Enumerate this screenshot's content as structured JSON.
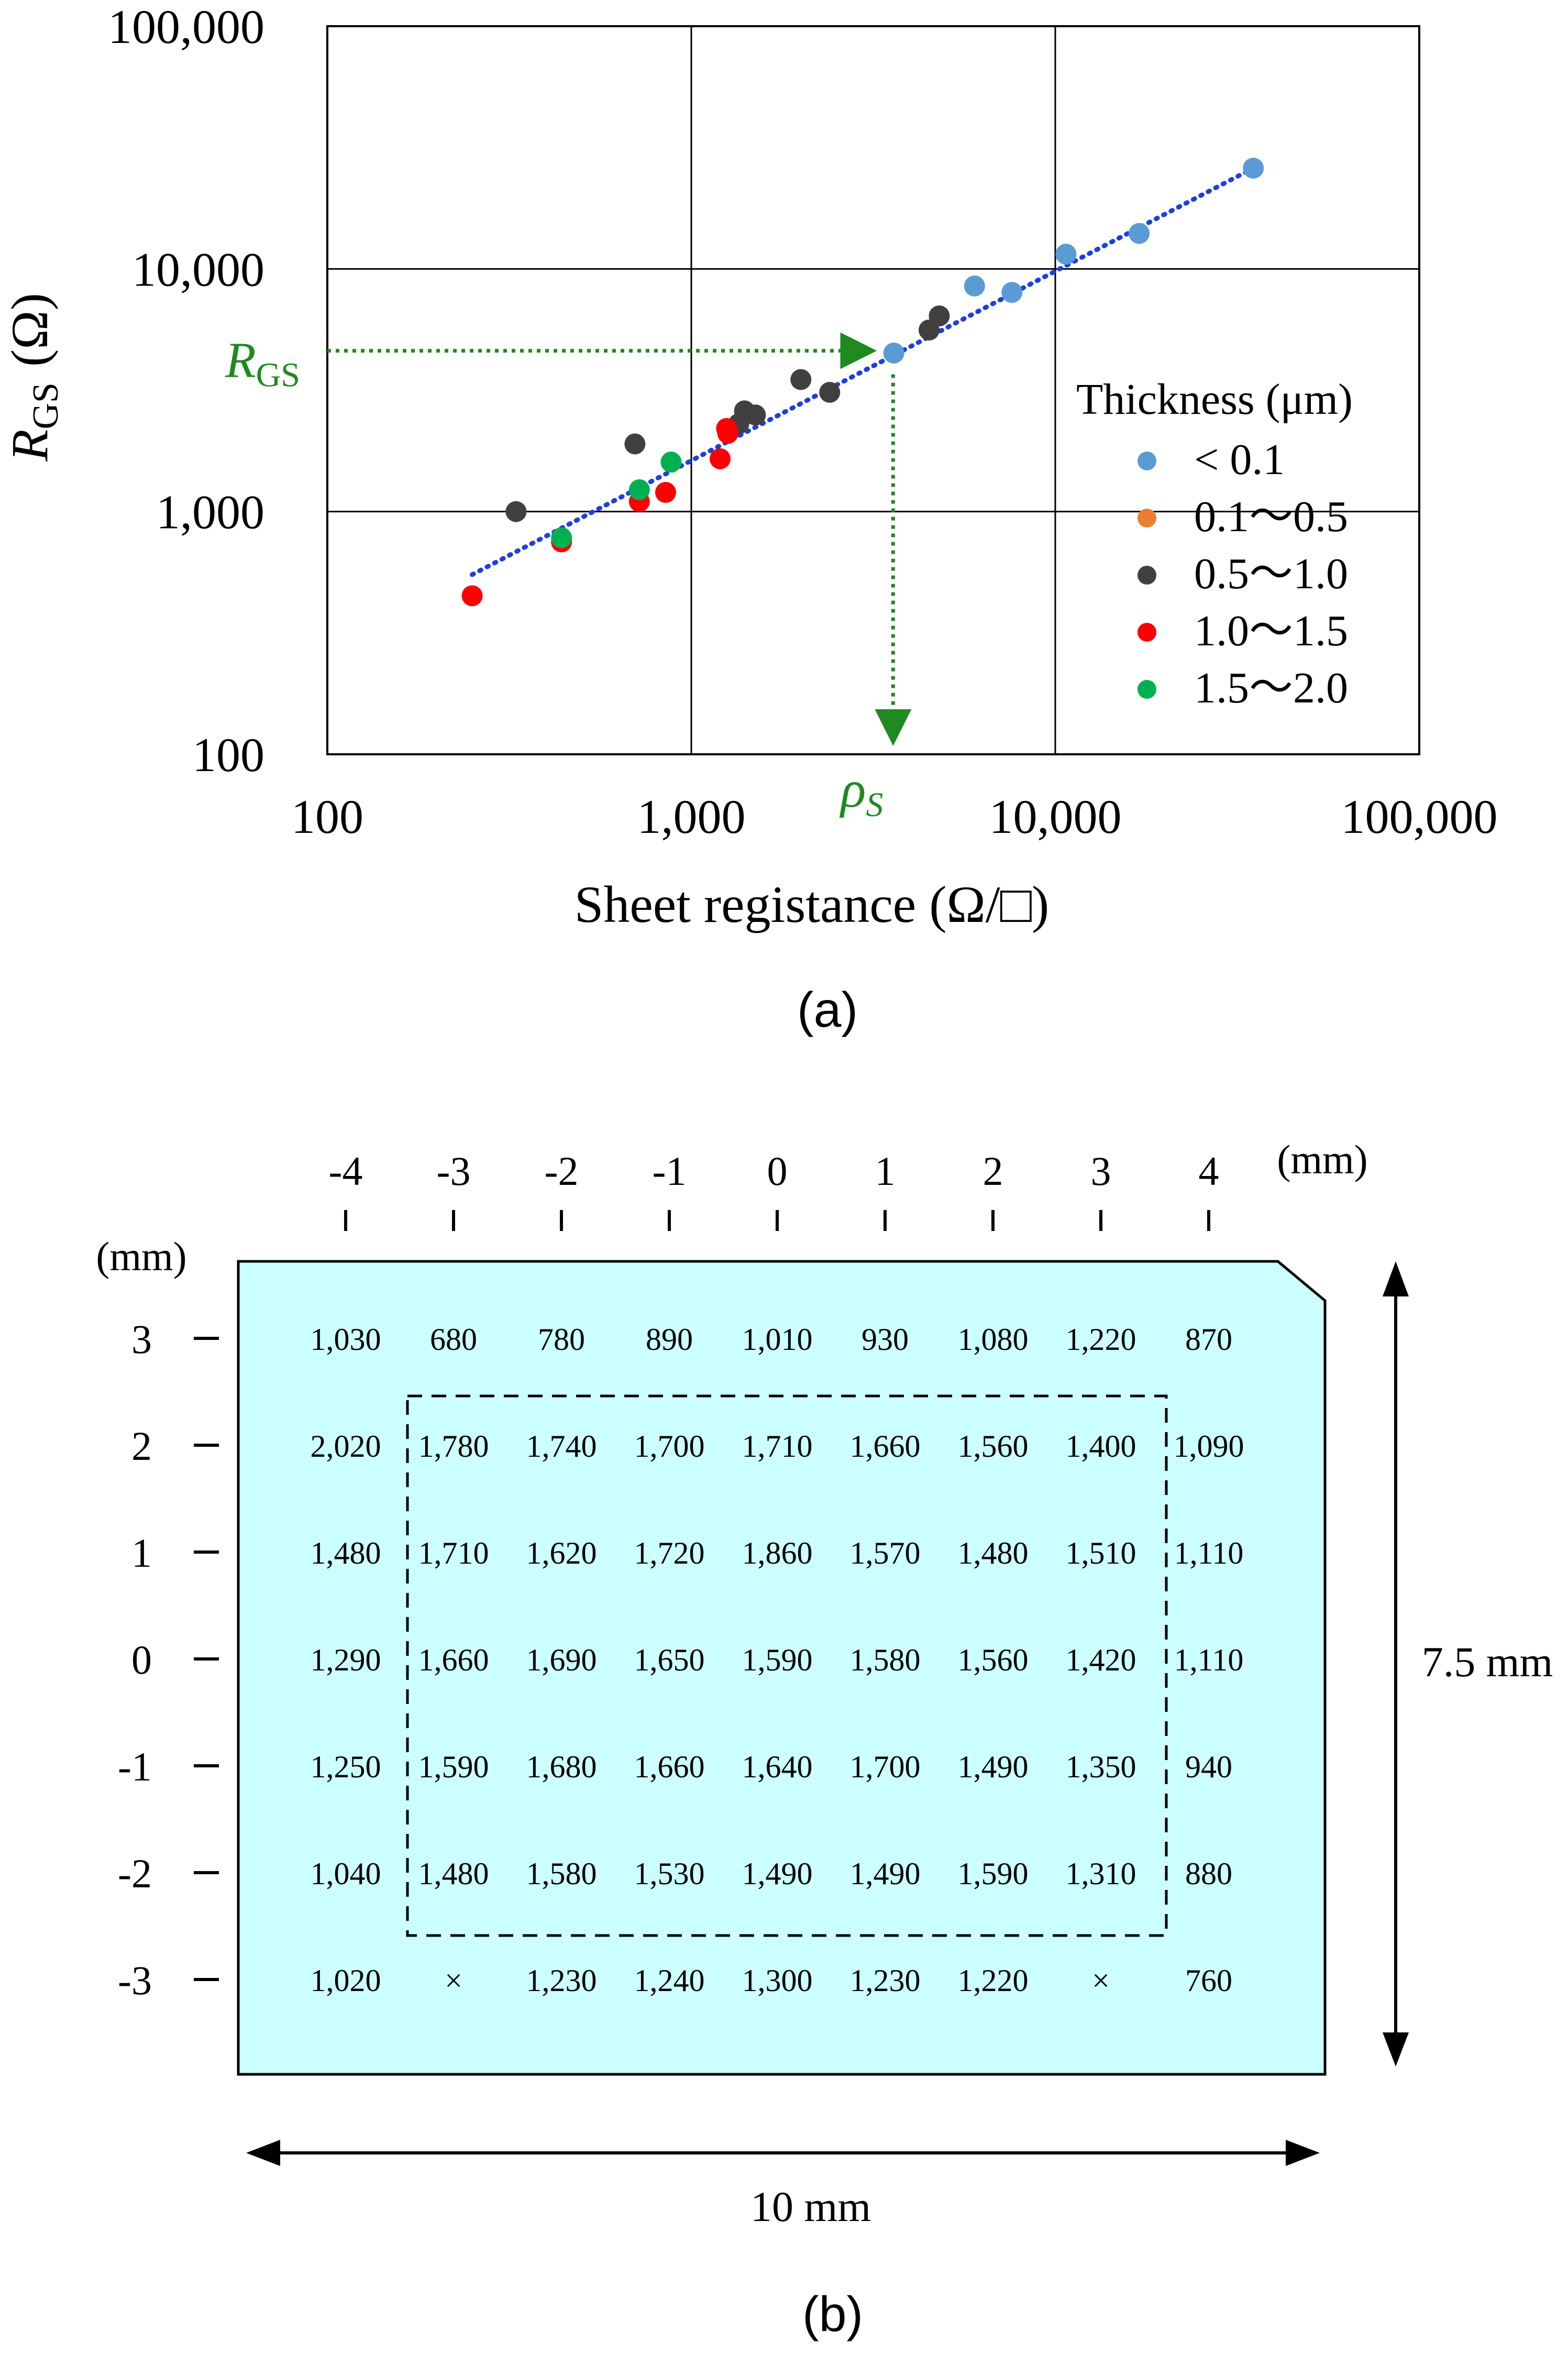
{
  "chart_data": [
    {
      "type": "scatter",
      "panel_label": "(a)",
      "xlabel": "Sheet registance (Ω/□)",
      "ylabel": "R",
      "ylabel_sub": "GS",
      "ylabel_unit": "(Ω)",
      "x_scale": "log",
      "y_scale": "log",
      "xlim": [
        100,
        100000
      ],
      "ylim": [
        100,
        100000
      ],
      "x_ticks": [
        100,
        1000,
        10000,
        100000
      ],
      "x_tick_labels": [
        "100",
        "1,000",
        "10,000",
        "100,000"
      ],
      "y_ticks": [
        100,
        1000,
        10000,
        100000
      ],
      "y_tick_labels": [
        "100",
        "1,000",
        "10,000",
        "100,000"
      ],
      "grid": true,
      "legend_title": "Thickness (μm)",
      "legend_placement": "right",
      "series": [
        {
          "name": "< 0.1",
          "color": "#5B9BD5",
          "points": [
            [
              3600,
              4500
            ],
            [
              6000,
              8500
            ],
            [
              7600,
              8000
            ],
            [
              10700,
              11500
            ],
            [
              17000,
              14000
            ],
            [
              35000,
              26000
            ]
          ]
        },
        {
          "name": "0.1〜0.5",
          "color": "#ED7D31",
          "points": []
        },
        {
          "name": "0.5〜1.0",
          "color": "#404040",
          "points": [
            [
              330,
              1000
            ],
            [
              700,
              1900
            ],
            [
              1400,
              2600
            ],
            [
              1500,
              2500
            ],
            [
              1350,
              2300
            ],
            [
              2000,
              3500
            ],
            [
              2400,
              3100
            ],
            [
              4500,
              5600
            ],
            [
              4800,
              6400
            ]
          ]
        },
        {
          "name": "1.0〜1.5",
          "color": "#FF0000",
          "points": [
            [
              250,
              450
            ],
            [
              440,
              750
            ],
            [
              720,
              1100
            ],
            [
              850,
              1200
            ],
            [
              1200,
              1650
            ],
            [
              1250,
              2200
            ],
            [
              1260,
              2100
            ]
          ]
        },
        {
          "name": "1.5〜2.0",
          "color": "#00B050",
          "points": [
            [
              440,
              780
            ],
            [
              720,
              1230
            ],
            [
              880,
              1600
            ]
          ]
        }
      ],
      "trendline": {
        "color": "#1F3FDB",
        "style": "dotted",
        "points": [
          [
            250,
            550
          ],
          [
            35000,
            26000
          ]
        ]
      },
      "annotation": {
        "color": "#1F8A1F",
        "rgs_label": "R",
        "rgs_sub": "GS",
        "rho_label": "ρ",
        "rho_sub": "S",
        "point": [
          3300,
          4600
        ]
      }
    },
    {
      "type": "table",
      "panel_label": "(b)",
      "unit_label_top": "(mm)",
      "unit_label_left": "(mm)",
      "col_labels": [
        "-4",
        "-3",
        "-2",
        "-1",
        "0",
        "1",
        "2",
        "3",
        "4"
      ],
      "row_labels": [
        "3",
        "2",
        "1",
        "0",
        "-1",
        "-2",
        "-3"
      ],
      "rows": [
        [
          "1,030",
          "680",
          "780",
          "890",
          "1,010",
          "930",
          "1,080",
          "1,220",
          "870"
        ],
        [
          "2,020",
          "1,780",
          "1,740",
          "1,700",
          "1,710",
          "1,660",
          "1,560",
          "1,400",
          "1,090"
        ],
        [
          "1,480",
          "1,710",
          "1,620",
          "1,720",
          "1,860",
          "1,570",
          "1,480",
          "1,510",
          "1,110"
        ],
        [
          "1,290",
          "1,660",
          "1,690",
          "1,650",
          "1,590",
          "1,580",
          "1,560",
          "1,420",
          "1,110"
        ],
        [
          "1,250",
          "1,590",
          "1,680",
          "1,660",
          "1,640",
          "1,700",
          "1,490",
          "1,350",
          "940"
        ],
        [
          "1,040",
          "1,480",
          "1,580",
          "1,530",
          "1,490",
          "1,490",
          "1,590",
          "1,310",
          "880"
        ],
        [
          "1,020",
          "×",
          "1,230",
          "1,240",
          "1,300",
          "1,230",
          "1,220",
          "×",
          "760"
        ]
      ],
      "dashed_region": {
        "cols": [
          "-3",
          "3"
        ],
        "rows": [
          "2",
          "-2"
        ]
      },
      "width_label": "10 mm",
      "height_label": "7.5 mm",
      "fill_color": "#CCFFFF"
    }
  ]
}
